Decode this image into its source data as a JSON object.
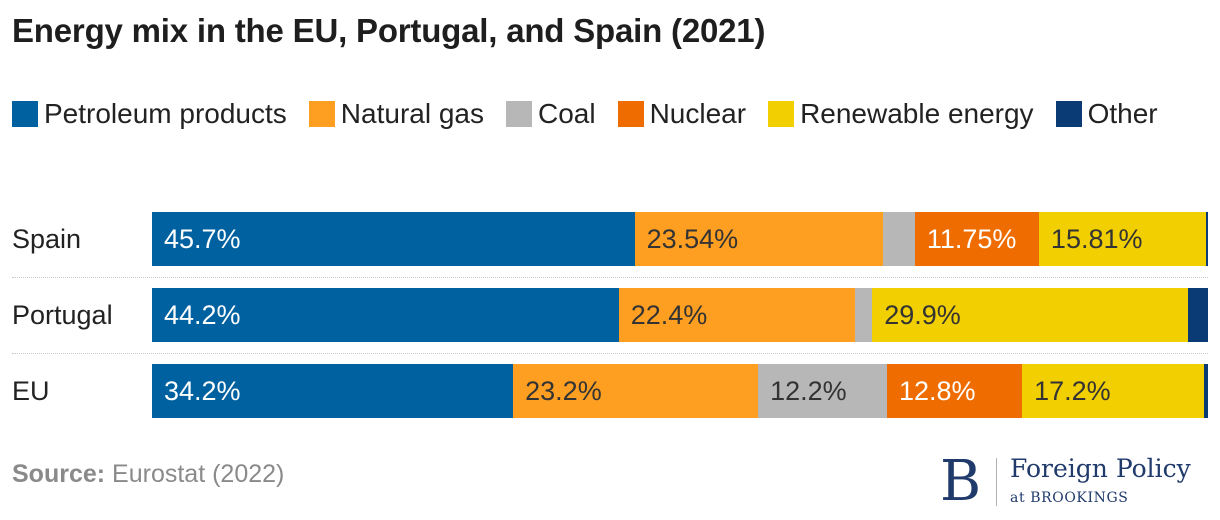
{
  "chart_data": {
    "type": "bar",
    "orientation": "horizontal",
    "stacked": true,
    "title": "Energy mix in the EU, Portugal, and Spain (2021)",
    "categories": [
      "Spain",
      "Portugal",
      "EU"
    ],
    "series": [
      {
        "name": "Petroleum products",
        "color": "#0061a0",
        "values": [
          45.7,
          44.2,
          34.2
        ],
        "labels": [
          "45.7%",
          "44.2%",
          "34.2%"
        ],
        "label_color": "#ffffff"
      },
      {
        "name": "Natural gas",
        "color": "#ff9f22",
        "values": [
          23.54,
          22.4,
          23.2
        ],
        "labels": [
          "23.54%",
          "22.4%",
          "23.2%"
        ],
        "label_color": "#333333"
      },
      {
        "name": "Coal",
        "color": "#b7b7b7",
        "values": [
          3.0,
          1.6,
          12.2
        ],
        "labels": [
          "",
          "",
          "12.2%"
        ],
        "label_color": "#333333"
      },
      {
        "name": "Nuclear",
        "color": "#ef6c00",
        "values": [
          11.75,
          0,
          12.8
        ],
        "labels": [
          "11.75%",
          "",
          "12.8%"
        ],
        "label_color": "#ffffff"
      },
      {
        "name": "Renewable energy",
        "color": "#f1cf00",
        "values": [
          15.81,
          29.9,
          17.2
        ],
        "labels": [
          "15.81%",
          "29.9%",
          "17.2%"
        ],
        "label_color": "#333333"
      },
      {
        "name": "Other",
        "color": "#0b3b74",
        "values": [
          0.2,
          1.9,
          0.4
        ],
        "labels": [
          "",
          "",
          ""
        ],
        "label_color": "#ffffff"
      }
    ],
    "xlim": [
      0,
      100
    ],
    "legend": "top-left",
    "grid": false
  },
  "source": {
    "prefix": "Source:",
    "text": " Eurostat (2022)"
  },
  "logo": {
    "mark": "B",
    "name": "Foreign Policy",
    "sub": "at BROOKINGS"
  }
}
